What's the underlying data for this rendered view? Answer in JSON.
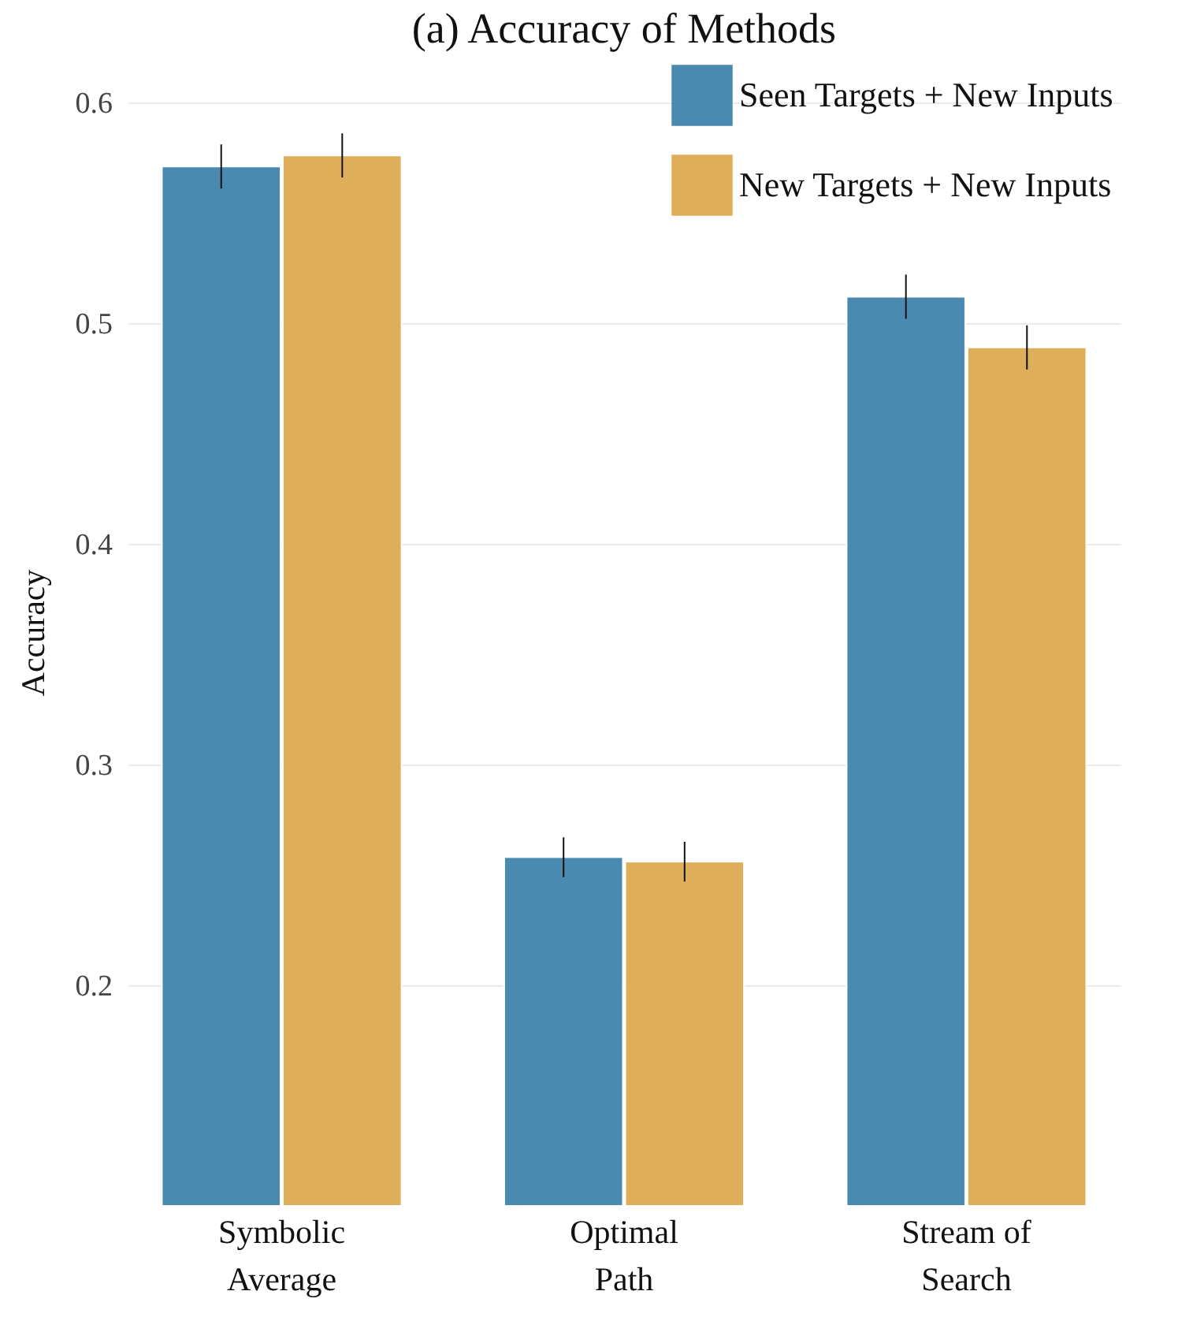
{
  "chart_data": {
    "type": "bar",
    "title": "(a) Accuracy of Methods",
    "ylabel": "Accuracy",
    "categories": [
      "Symbolic\nAverage",
      "Optimal\nPath",
      "Stream of\nSearch"
    ],
    "series": [
      {
        "name": "Seen Targets + New Inputs",
        "color": "#4a8ab0",
        "values": [
          0.571,
          0.258,
          0.512
        ],
        "errors": [
          0.01,
          0.009,
          0.01
        ]
      },
      {
        "name": "New Targets + New Inputs",
        "color": "#deae5a",
        "values": [
          0.576,
          0.256,
          0.489
        ],
        "errors": [
          0.01,
          0.009,
          0.01
        ]
      }
    ],
    "ylim": [
      0.1,
      0.62
    ],
    "yticks": [
      0.2,
      0.3,
      0.4,
      0.5,
      0.6
    ],
    "grid": "y",
    "legend": "top right"
  }
}
